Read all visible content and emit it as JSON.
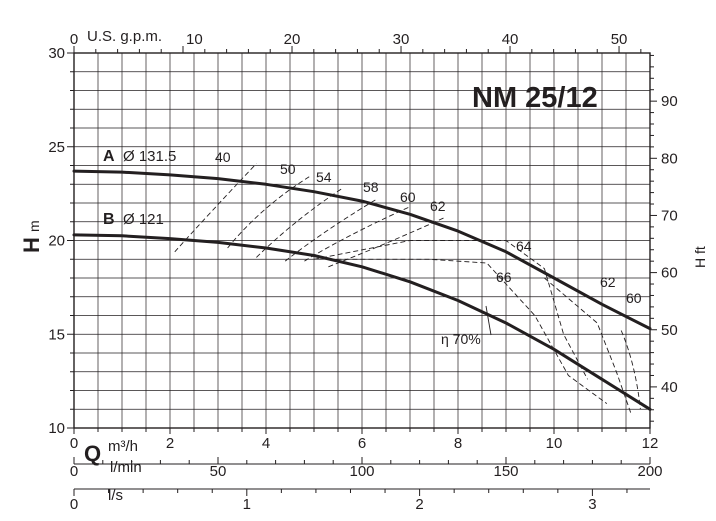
{
  "chart_data": {
    "type": "line",
    "title": "NM 25/12",
    "ylabel_left": "H",
    "ylabel_left_unit": "m",
    "ylabel_right": "H ft",
    "xlabel_q": "Q",
    "x_units": {
      "m3h": "m³/h",
      "lmin": "l/min",
      "ls": "l/s",
      "gpm": "U.S. g.p.m."
    },
    "xlim_m3h": [
      0,
      12
    ],
    "ylim_m": [
      10,
      30
    ],
    "grid": true,
    "ticks": {
      "m3h": [
        "0",
        "2",
        "4",
        "6",
        "8",
        "10",
        "12"
      ],
      "lmin": [
        "0",
        "50",
        "100",
        "150",
        "200"
      ],
      "ls": [
        "0",
        "1",
        "2",
        "3"
      ],
      "gpm": [
        "0",
        "10",
        "20",
        "30",
        "40",
        "50"
      ],
      "h_m": [
        "10",
        "15",
        "20",
        "25",
        "30"
      ],
      "h_ft": [
        "40",
        "50",
        "60",
        "70",
        "80",
        "90"
      ]
    },
    "series": [
      {
        "name": "A",
        "label": "Ø 131.5",
        "x": [
          0,
          1,
          2,
          3,
          4,
          5,
          6,
          7,
          8,
          9,
          10,
          11,
          12
        ],
        "y": [
          23.7,
          23.65,
          23.5,
          23.3,
          23.0,
          22.6,
          22.1,
          21.4,
          20.5,
          19.4,
          18.0,
          16.6,
          15.3
        ]
      },
      {
        "name": "B",
        "label": "Ø 121",
        "x": [
          0,
          1,
          2,
          3,
          4,
          5,
          6,
          7,
          8,
          9,
          10,
          11,
          12
        ],
        "y": [
          20.3,
          20.25,
          20.1,
          19.9,
          19.6,
          19.2,
          18.6,
          17.8,
          16.8,
          15.6,
          14.2,
          12.6,
          11.0
        ]
      }
    ],
    "efficiency_labels": [
      "40",
      "50",
      "54",
      "58",
      "60",
      "62",
      "64",
      "66",
      "62",
      "60",
      "η 70%"
    ],
    "efficiency_iso_curves": [
      {
        "label": "40",
        "points": [
          [
            2.1,
            19.4
          ],
          [
            2.8,
            21.4
          ],
          [
            3.8,
            24.1
          ]
        ]
      },
      {
        "label": "50",
        "points": [
          [
            3.2,
            19.6
          ],
          [
            3.9,
            21.8
          ],
          [
            4.9,
            23.4
          ]
        ]
      },
      {
        "label": "54",
        "points": [
          [
            3.8,
            19.1
          ],
          [
            4.6,
            21.1
          ],
          [
            5.6,
            22.8
          ]
        ]
      },
      {
        "label": "58",
        "points": [
          [
            4.4,
            18.9
          ],
          [
            5.2,
            20.5
          ],
          [
            6.3,
            22.2
          ]
        ]
      },
      {
        "label": "60",
        "points": [
          [
            4.8,
            18.9
          ],
          [
            5.7,
            20.3
          ],
          [
            7.0,
            21.8
          ]
        ]
      },
      {
        "label": "62",
        "points": [
          [
            5.3,
            18.6
          ],
          [
            6.5,
            19.8
          ],
          [
            7.7,
            21.2
          ]
        ]
      },
      {
        "label": "64",
        "points": [
          [
            5.0,
            19.0
          ],
          [
            7.0,
            20.0
          ],
          [
            9.0,
            20.0
          ],
          [
            9.8,
            18.5
          ],
          [
            10.2,
            15.0
          ],
          [
            10.7,
            12.6
          ]
        ]
      },
      {
        "label": "66",
        "points": [
          [
            5.3,
            19.0
          ],
          [
            7.4,
            19.0
          ],
          [
            8.6,
            18.8
          ],
          [
            9.6,
            16.0
          ],
          [
            10.3,
            12.8
          ],
          [
            11.1,
            11.3
          ]
        ]
      },
      {
        "label": "62",
        "points": [
          [
            9.8,
            18.0
          ],
          [
            10.9,
            15.6
          ],
          [
            11.3,
            13.0
          ],
          [
            11.6,
            10.8
          ]
        ]
      },
      {
        "label": "60",
        "points": [
          [
            11.4,
            15.2
          ],
          [
            11.7,
            13.4
          ],
          [
            11.8,
            11.0
          ]
        ]
      }
    ]
  }
}
